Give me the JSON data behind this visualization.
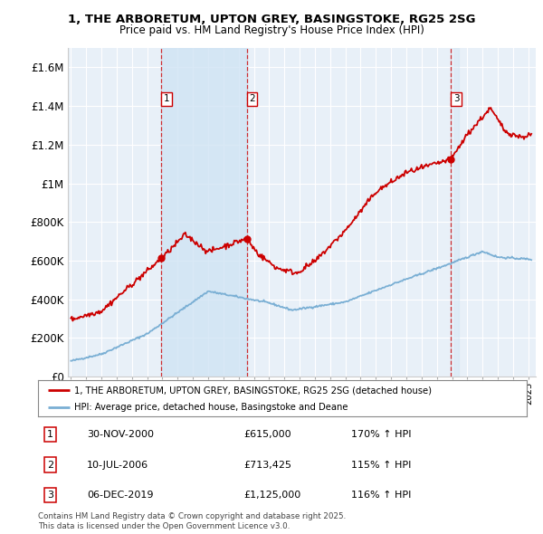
{
  "title1": "1, THE ARBORETUM, UPTON GREY, BASINGSTOKE, RG25 2SG",
  "title2": "Price paid vs. HM Land Registry's House Price Index (HPI)",
  "sale_label1": "1, THE ARBORETUM, UPTON GREY, BASINGSTOKE, RG25 2SG (detached house)",
  "hpi_label": "HPI: Average price, detached house, Basingstoke and Deane",
  "sale_color": "#cc0000",
  "hpi_color": "#7aafd4",
  "plot_bg": "#e8f0f8",
  "shade_color": "#d0e4f4",
  "grid_color": "#ffffff",
  "sales": [
    {
      "num": 1,
      "date": "30-NOV-2000",
      "price": 615000,
      "hpi_pct": "170% ↑ HPI",
      "year": 2000.92
    },
    {
      "num": 2,
      "date": "10-JUL-2006",
      "price": 713425,
      "hpi_pct": "115% ↑ HPI",
      "year": 2006.53
    },
    {
      "num": 3,
      "date": "06-DEC-2019",
      "price": 1125000,
      "hpi_pct": "116% ↑ HPI",
      "year": 2019.93
    }
  ],
  "footer": "Contains HM Land Registry data © Crown copyright and database right 2025.\nThis data is licensed under the Open Government Licence v3.0.",
  "ylim": [
    0,
    1700000
  ],
  "xlim_start": 1994.8,
  "xlim_end": 2025.5
}
